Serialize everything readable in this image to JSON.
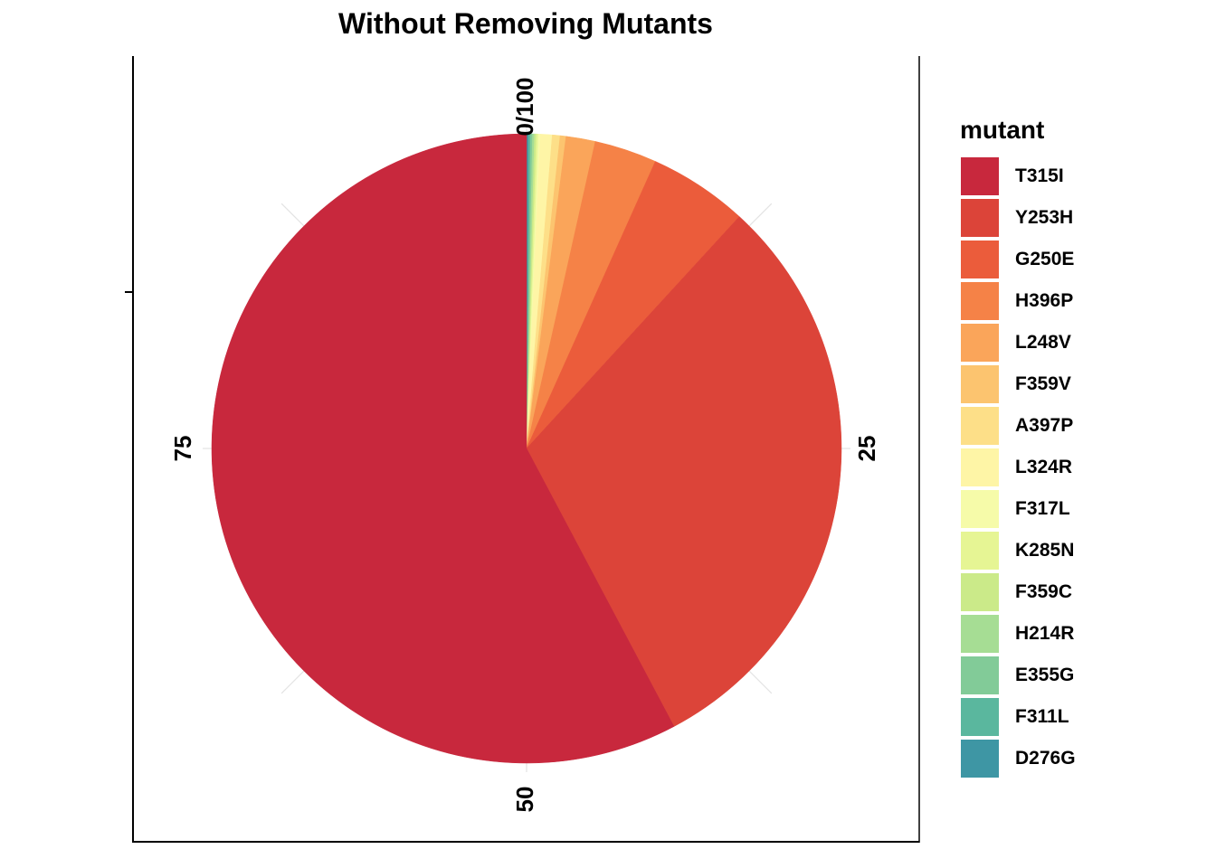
{
  "chart_data": {
    "type": "pie",
    "title": "Without Removing Mutants",
    "legend_title": "mutant",
    "legend_position": "right",
    "direction": "clockwise from top",
    "angular_ticks": [
      {
        "value": 0,
        "label": "0/100"
      },
      {
        "value": 25,
        "label": "25"
      },
      {
        "value": 50,
        "label": "50"
      },
      {
        "value": 75,
        "label": "75"
      }
    ],
    "grid": true,
    "slices": [
      {
        "label": "D276G",
        "value": 0.1,
        "color": "#3E96A4"
      },
      {
        "label": "F311L",
        "value": 0.1,
        "color": "#5AB79E"
      },
      {
        "label": "E355G",
        "value": 0.1,
        "color": "#82CB98"
      },
      {
        "label": "H214R",
        "value": 0.1,
        "color": "#A6DD94"
      },
      {
        "label": "F359C",
        "value": 0.1,
        "color": "#CBEA89"
      },
      {
        "label": "K285N",
        "value": 0.1,
        "color": "#E6F594"
      },
      {
        "label": "F317L",
        "value": 0.1,
        "color": "#F6FBA9"
      },
      {
        "label": "L324R",
        "value": 0.6,
        "color": "#FEF5A6"
      },
      {
        "label": "A397P",
        "value": 0.4,
        "color": "#FDDF88"
      },
      {
        "label": "F359V",
        "value": 0.3,
        "color": "#FCC46F"
      },
      {
        "label": "L248V",
        "value": 1.5,
        "color": "#FAA55A"
      },
      {
        "label": "H396P",
        "value": 3.2,
        "color": "#F58247"
      },
      {
        "label": "G250E",
        "value": 5.1,
        "color": "#EB5C3B"
      },
      {
        "label": "Y253H",
        "value": 30.4,
        "color": "#DC4439"
      },
      {
        "label": "T315I",
        "value": 57.7,
        "color": "#C8283D"
      }
    ]
  }
}
